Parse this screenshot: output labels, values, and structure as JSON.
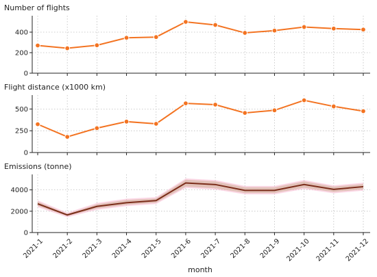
{
  "chart_data": [
    {
      "type": "line",
      "title": "Number of flights",
      "xlabel": "",
      "ylabel": "",
      "categories": [
        "2021-1",
        "2021-2",
        "2021-3",
        "2021-4",
        "2021-5",
        "2021-6",
        "2021-7",
        "2021-8",
        "2021-9",
        "2021-10",
        "2021-11",
        "2021-12"
      ],
      "series": [
        {
          "values": [
            270,
            243,
            272,
            345,
            352,
            500,
            470,
            393,
            415,
            450,
            435,
            425
          ]
        }
      ],
      "ylim": [
        0,
        560
      ],
      "yticks": [
        0,
        200,
        400
      ],
      "grid": true,
      "color": "#f37321"
    },
    {
      "type": "line",
      "title": "Flight distance (x1000 km)",
      "xlabel": "",
      "ylabel": "",
      "categories": [
        "2021-1",
        "2021-2",
        "2021-3",
        "2021-4",
        "2021-5",
        "2021-6",
        "2021-7",
        "2021-8",
        "2021-9",
        "2021-10",
        "2021-11",
        "2021-12"
      ],
      "series": [
        {
          "values": [
            325,
            180,
            280,
            355,
            330,
            565,
            550,
            455,
            485,
            600,
            530,
            475
          ]
        }
      ],
      "ylim": [
        0,
        660
      ],
      "yticks": [
        0,
        250,
        500
      ],
      "grid": true,
      "color": "#f37321"
    },
    {
      "type": "line",
      "title": "Emissions (tonne)",
      "xlabel": "month",
      "ylabel": "",
      "categories": [
        "2021-1",
        "2021-2",
        "2021-3",
        "2021-4",
        "2021-5",
        "2021-6",
        "2021-7",
        "2021-8",
        "2021-9",
        "2021-10",
        "2021-11",
        "2021-12"
      ],
      "series": [
        {
          "values": [
            2700,
            1650,
            2450,
            2800,
            3000,
            4650,
            4500,
            3950,
            3950,
            4500,
            4050,
            4300
          ],
          "lower": [
            2500,
            1550,
            2250,
            2600,
            2800,
            4300,
            4150,
            3700,
            3700,
            4200,
            3800,
            4050
          ],
          "upper": [
            2900,
            1750,
            2650,
            3050,
            3200,
            4950,
            4800,
            4250,
            4250,
            4800,
            4300,
            4550
          ]
        }
      ],
      "ylim": [
        0,
        5450
      ],
      "yticks": [
        0,
        2000,
        4000
      ],
      "grid": true,
      "color": "#7b2d1a",
      "band_colors": [
        "#f7b6cf",
        "#d9b9a9"
      ]
    }
  ]
}
